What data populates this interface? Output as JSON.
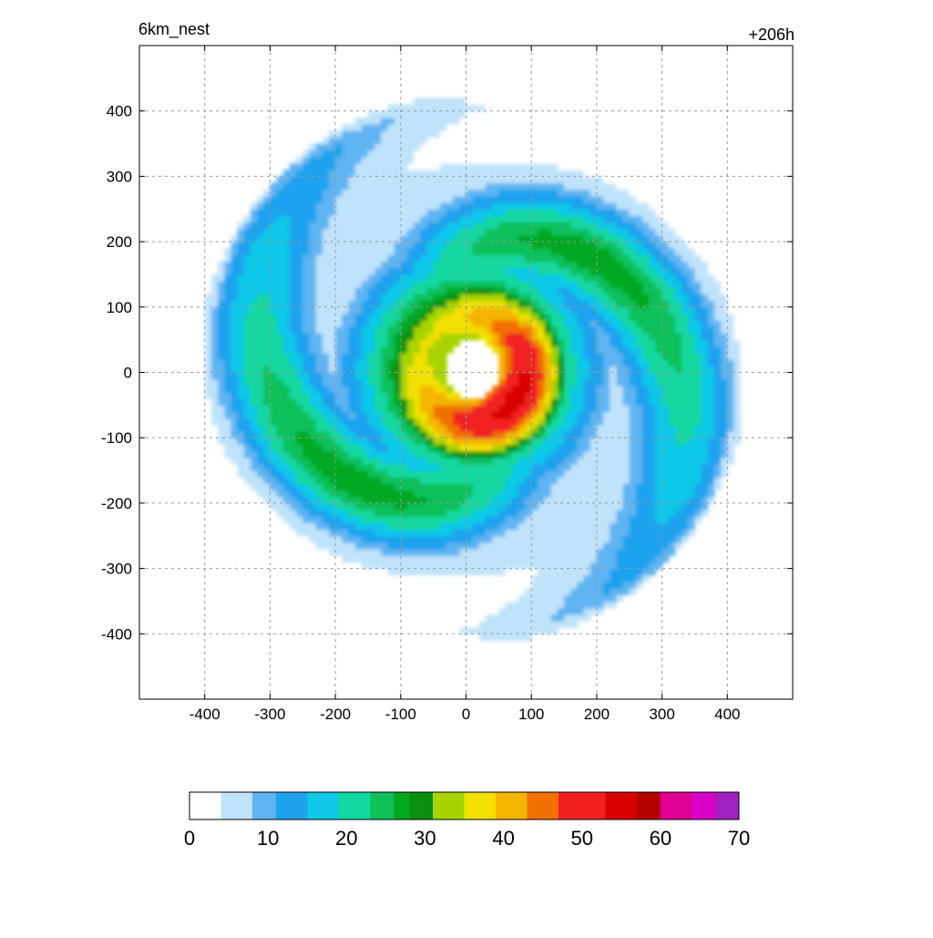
{
  "chart_data": {
    "type": "heatmap",
    "title_left": "6km_nest",
    "title_right": "+206h",
    "xlabel": "",
    "ylabel": "",
    "xlim": [
      -500,
      500
    ],
    "ylim": [
      -500,
      500
    ],
    "x_ticks": [
      -400,
      -300,
      -200,
      -100,
      0,
      100,
      200,
      300,
      400
    ],
    "y_ticks": [
      -400,
      -300,
      -200,
      -100,
      0,
      100,
      200,
      300,
      400
    ],
    "grid": true,
    "colorbar": {
      "range": [
        0,
        70
      ],
      "ticks": [
        0,
        10,
        20,
        30,
        40,
        50,
        60,
        70
      ],
      "stops": [
        {
          "value": 0,
          "color": "#ffffff"
        },
        {
          "value": 4,
          "color": "#bfe3fb"
        },
        {
          "value": 8,
          "color": "#5fb4f2"
        },
        {
          "value": 11,
          "color": "#1fa2ee"
        },
        {
          "value": 15,
          "color": "#10c8e8"
        },
        {
          "value": 19,
          "color": "#12d7a0"
        },
        {
          "value": 23,
          "color": "#10c05a"
        },
        {
          "value": 26,
          "color": "#00a820"
        },
        {
          "value": 28,
          "color": "#0a8f12"
        },
        {
          "value": 31,
          "color": "#a7d400"
        },
        {
          "value": 35,
          "color": "#f1e000"
        },
        {
          "value": 39,
          "color": "#f4b400"
        },
        {
          "value": 43,
          "color": "#f17000"
        },
        {
          "value": 47,
          "color": "#f02020"
        },
        {
          "value": 53,
          "color": "#d80000"
        },
        {
          "value": 57,
          "color": "#b40000"
        },
        {
          "value": 60,
          "color": "#e00096"
        },
        {
          "value": 64,
          "color": "#d800c8"
        },
        {
          "value": 67,
          "color": "#a020c0"
        },
        {
          "value": 70,
          "color": "#b08ce0"
        }
      ]
    },
    "field": {
      "description_units": "km",
      "eye_center": [
        10,
        5
      ],
      "eye_radius": 45,
      "max_ring_radius": 80,
      "max_value": 55,
      "core_outer_radius": 190,
      "spiral_band_max_radius": 420
    }
  }
}
